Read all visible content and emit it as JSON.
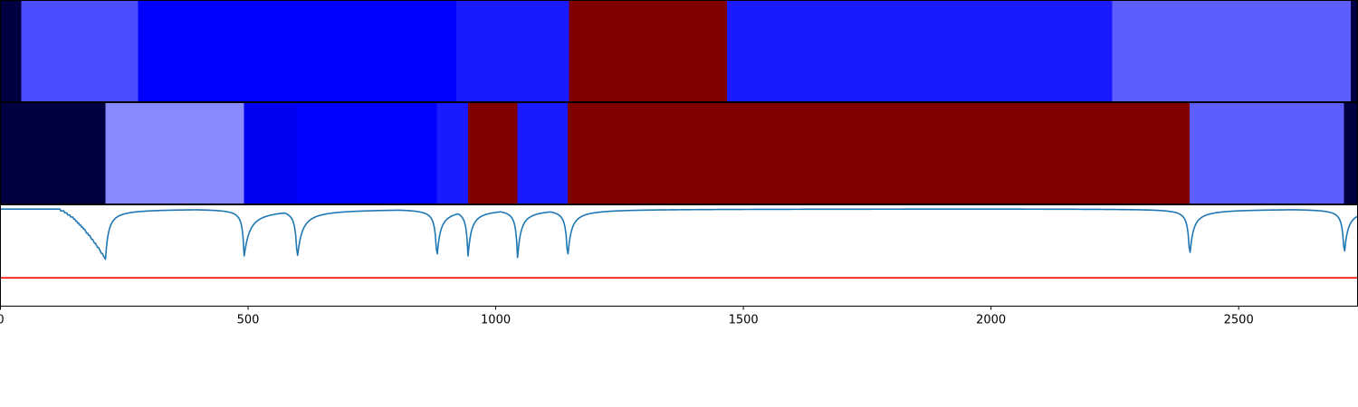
{
  "chart_data": [
    {
      "type": "heatmap",
      "panel": "top",
      "x_range": [
        0,
        2740
      ],
      "colormap": "seismic",
      "segments": [
        {
          "start": 0,
          "end": 42,
          "color": "#000040"
        },
        {
          "start": 42,
          "end": 278,
          "color": "#4c4cff"
        },
        {
          "start": 278,
          "end": 920,
          "color": "#0000ff"
        },
        {
          "start": 920,
          "end": 1148,
          "color": "#1a1aff"
        },
        {
          "start": 1148,
          "end": 1467,
          "color": "#800000"
        },
        {
          "start": 1467,
          "end": 2245,
          "color": "#1a1aff"
        },
        {
          "start": 2245,
          "end": 2726,
          "color": "#5e5eff"
        },
        {
          "start": 2726,
          "end": 2740,
          "color": "#000040"
        }
      ]
    },
    {
      "type": "heatmap",
      "panel": "middle",
      "x_range": [
        0,
        2740
      ],
      "colormap": "seismic",
      "segments": [
        {
          "start": 0,
          "end": 212,
          "color": "#000040"
        },
        {
          "start": 212,
          "end": 492,
          "color": "#8a8aff"
        },
        {
          "start": 492,
          "end": 599,
          "color": "#0000ee"
        },
        {
          "start": 599,
          "end": 881,
          "color": "#0000ff"
        },
        {
          "start": 881,
          "end": 944,
          "color": "#1a1aff"
        },
        {
          "start": 944,
          "end": 1044,
          "color": "#800000"
        },
        {
          "start": 1044,
          "end": 1145,
          "color": "#1a1aff"
        },
        {
          "start": 1145,
          "end": 2401,
          "color": "#800000"
        },
        {
          "start": 2401,
          "end": 2713,
          "color": "#5e5eff"
        },
        {
          "start": 2713,
          "end": 2740,
          "color": "#000040"
        }
      ]
    },
    {
      "type": "line",
      "panel": "bottom",
      "x_range": [
        0,
        2740
      ],
      "y_range": [
        -1.2,
        0.05
      ],
      "xticks": [
        0,
        500,
        1000,
        1500,
        2000,
        2500
      ],
      "xtick_labels": [
        "0",
        "500",
        "1000",
        "1500",
        "2000",
        "2500"
      ],
      "series": [
        {
          "color": "#1f77b4",
          "baseline": 0,
          "dips": [
            {
              "x": 212,
              "depth": 0.62,
              "width_left": 100,
              "width_right": 16,
              "stepped": true
            },
            {
              "x": 492,
              "depth": 0.58,
              "width_left": 9,
              "width_right": 30
            },
            {
              "x": 599,
              "depth": 0.62,
              "width_left": 9,
              "width_right": 25
            },
            {
              "x": 881,
              "depth": 0.62,
              "width_left": 9,
              "width_right": 18
            },
            {
              "x": 944,
              "depth": 0.58,
              "width_left": 9,
              "width_right": 18
            },
            {
              "x": 1044,
              "depth": 0.6,
              "width_left": 9,
              "width_right": 18
            },
            {
              "x": 1145,
              "depth": 0.62,
              "width_left": 9,
              "width_right": 18
            },
            {
              "x": 2401,
              "depth": 0.6,
              "width_left": 9,
              "width_right": 18
            },
            {
              "x": 2713,
              "depth": 0.58,
              "width_left": 9,
              "width_right": 18
            }
          ]
        },
        {
          "color": "#ff0000",
          "constant": -0.85
        }
      ]
    }
  ]
}
